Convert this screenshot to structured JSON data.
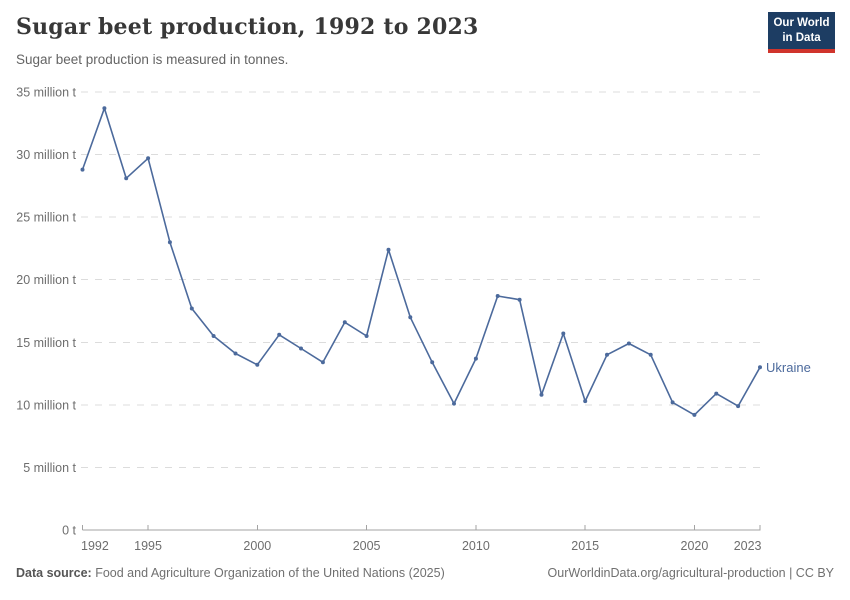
{
  "header": {
    "title": "Sugar beet production, 1992 to 2023",
    "subtitle": "Sugar beet production is measured in tonnes.",
    "logo": {
      "line1": "Our World",
      "line2": "in Data",
      "bg_color": "#1d3d63",
      "accent_color": "#d0342c"
    }
  },
  "chart_data": {
    "type": "line",
    "title": "Sugar beet production, 1992 to 2023",
    "subtitle": "Sugar beet production is measured in tonnes.",
    "unit": "million tonnes",
    "entity_label": "Ukraine",
    "line_color": "#4c6a9c",
    "grid": "horizontal-dashed",
    "xlim": [
      1992,
      2023
    ],
    "ylim": [
      0,
      35
    ],
    "x": [
      1992,
      1993,
      1994,
      1995,
      1996,
      1997,
      1998,
      1999,
      2000,
      2001,
      2002,
      2003,
      2004,
      2005,
      2006,
      2007,
      2008,
      2009,
      2010,
      2011,
      2012,
      2013,
      2014,
      2015,
      2016,
      2017,
      2018,
      2019,
      2020,
      2021,
      2022,
      2023
    ],
    "series": [
      {
        "name": "Ukraine",
        "values": [
          28.8,
          33.7,
          28.1,
          29.7,
          23.0,
          17.7,
          15.5,
          14.1,
          13.2,
          15.6,
          14.5,
          13.4,
          16.6,
          15.5,
          22.4,
          17.0,
          13.4,
          10.1,
          13.7,
          18.7,
          18.4,
          10.8,
          15.7,
          10.3,
          14.0,
          14.9,
          14.0,
          10.2,
          9.2,
          10.9,
          9.9,
          13.0
        ]
      }
    ],
    "yticks": [
      {
        "v": 0,
        "label": "0 t"
      },
      {
        "v": 5,
        "label": "5 million t"
      },
      {
        "v": 10,
        "label": "10 million t"
      },
      {
        "v": 15,
        "label": "15 million t"
      },
      {
        "v": 20,
        "label": "20 million t"
      },
      {
        "v": 25,
        "label": "25 million t"
      },
      {
        "v": 30,
        "label": "30 million t"
      },
      {
        "v": 35,
        "label": "35 million t"
      }
    ],
    "xticks": [
      {
        "v": 1992,
        "label": "1992"
      },
      {
        "v": 1995,
        "label": "1995"
      },
      {
        "v": 2000,
        "label": "2000"
      },
      {
        "v": 2005,
        "label": "2005"
      },
      {
        "v": 2010,
        "label": "2010"
      },
      {
        "v": 2015,
        "label": "2015"
      },
      {
        "v": 2020,
        "label": "2020"
      },
      {
        "v": 2023,
        "label": "2023"
      }
    ]
  },
  "footer": {
    "source_label": "Data source:",
    "source_text": "Food and Agriculture Organization of the United Nations (2025)",
    "right_text": "OurWorldinData.org/agricultural-production | CC BY"
  }
}
